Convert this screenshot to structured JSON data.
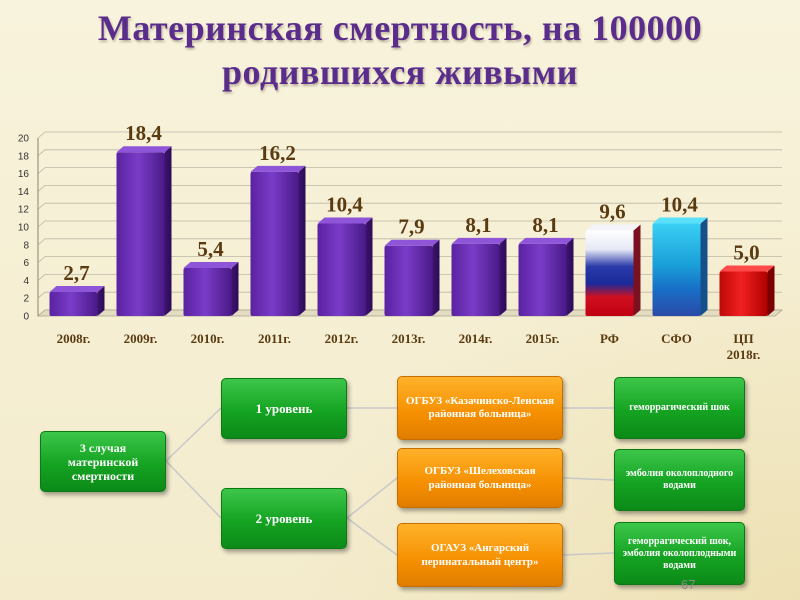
{
  "slide": {
    "title_line1": "Материнская смертность, на 100000",
    "title_line2": "родившихся живыми",
    "page_number": "67"
  },
  "chart_data": {
    "type": "bar",
    "categories": [
      "2008г.",
      "2009г.",
      "2010г.",
      "2011г.",
      "2012г.",
      "2013г.",
      "2014г.",
      "2015г.",
      "РФ",
      "СФО",
      "ЦП 2018г."
    ],
    "values": [
      2.7,
      18.4,
      5.4,
      16.2,
      10.4,
      7.9,
      8.1,
      8.1,
      9.6,
      10.4,
      5.0
    ],
    "value_labels": [
      "2,7",
      "18,4",
      "5,4",
      "16,2",
      "10,4",
      "7,9",
      "8,1",
      "8,1",
      "9,6",
      "10,4",
      "5,0"
    ],
    "y_ticks": [
      0,
      2,
      4,
      6,
      8,
      10,
      12,
      14,
      16,
      18,
      20
    ],
    "ylim": [
      0,
      20
    ],
    "grid": true,
    "legend": "none",
    "bar_colors": {
      "years": "#6a2eb0",
      "rf": "tricolor",
      "sfo": "#1fb3e0",
      "cp": "#e01010"
    }
  },
  "diagram": {
    "root": "3 случая материнской смертности",
    "level1": "1 уровень",
    "level2": "2 уровень",
    "hospital1": "ОГБУЗ «Казачинско-Ленская районная больница»",
    "hospital2": "ОГБУЗ «Шелеховская районная больница»",
    "hospital3": "ОГАУЗ «Ангарский перинатальный центр»",
    "cause1": "геморрагический шок",
    "cause2": "эмболия околоплодного водами",
    "cause3": "геморрагический шок, эмболия околоплодными водами"
  },
  "colors": {
    "title": "#5a2d8c",
    "label": "#5a3a10",
    "green": "#15a322",
    "orange": "#f58f00"
  }
}
